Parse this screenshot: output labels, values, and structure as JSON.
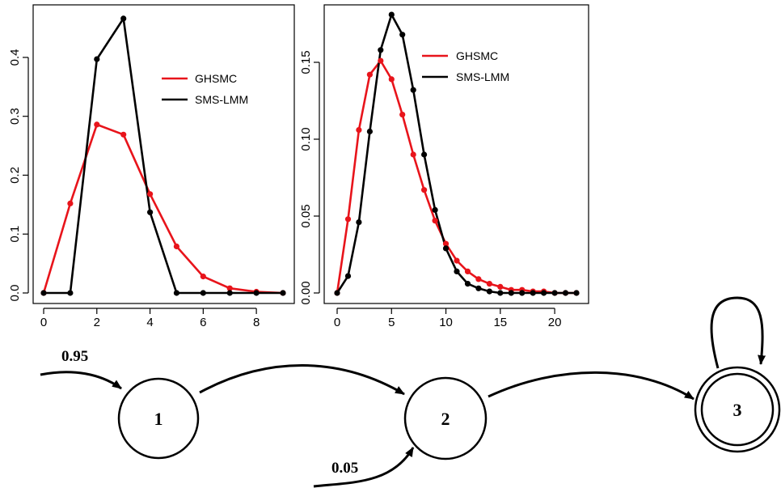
{
  "colors": {
    "ghsmc": "#e8141b",
    "sms_lmm": "#000000"
  },
  "chart_data": [
    {
      "type": "line",
      "xlim": [
        0,
        9
      ],
      "ylim": [
        0,
        0.47
      ],
      "x_ticks": [
        0,
        2,
        4,
        6,
        8
      ],
      "y_ticks": [
        0.0,
        0.1,
        0.2,
        0.3,
        0.4
      ],
      "x_tick_labels": [
        "0",
        "2",
        "4",
        "6",
        "8"
      ],
      "y_tick_labels": [
        "0.0",
        "0.1",
        "0.2",
        "0.3",
        "0.4"
      ],
      "legend_position": "top-right",
      "grid": false,
      "series": [
        {
          "name": "GHSMC",
          "color": "#e8141b",
          "x": [
            0,
            1,
            2,
            3,
            4,
            5,
            6,
            7,
            8,
            9
          ],
          "y": [
            0.0,
            0.152,
            0.286,
            0.269,
            0.168,
            0.079,
            0.028,
            0.008,
            0.002,
            0.0
          ]
        },
        {
          "name": "SMS-LMM",
          "color": "#000000",
          "x": [
            0,
            1,
            2,
            3,
            4,
            5,
            6,
            7,
            8,
            9
          ],
          "y": [
            0.0,
            0.0,
            0.397,
            0.466,
            0.137,
            0.0,
            0.0,
            0.0,
            0.0,
            0.0
          ]
        }
      ]
    },
    {
      "type": "line",
      "xlim": [
        0,
        22
      ],
      "ylim": [
        0,
        0.18
      ],
      "x_ticks": [
        0,
        5,
        10,
        15,
        20
      ],
      "y_ticks": [
        0.0,
        0.05,
        0.1,
        0.15
      ],
      "x_tick_labels": [
        "0",
        "5",
        "10",
        "15",
        "20"
      ],
      "y_tick_labels": [
        "0.00",
        "0.05",
        "0.10",
        "0.15"
      ],
      "legend_position": "top-right",
      "grid": false,
      "series": [
        {
          "name": "GHSMC",
          "color": "#e8141b",
          "x": [
            0,
            1,
            2,
            3,
            4,
            5,
            6,
            7,
            8,
            9,
            10,
            11,
            12,
            13,
            14,
            15,
            16,
            17,
            18,
            19,
            20,
            21,
            22
          ],
          "y": [
            0.0,
            0.048,
            0.106,
            0.142,
            0.151,
            0.139,
            0.116,
            0.09,
            0.067,
            0.047,
            0.032,
            0.021,
            0.014,
            0.009,
            0.006,
            0.004,
            0.002,
            0.002,
            0.001,
            0.001,
            0.0,
            0.0,
            0.0
          ]
        },
        {
          "name": "SMS-LMM",
          "color": "#000000",
          "x": [
            0,
            1,
            2,
            3,
            4,
            5,
            6,
            7,
            8,
            9,
            10,
            11,
            12,
            13,
            14,
            15,
            16,
            17,
            18,
            19,
            20,
            21,
            22
          ],
          "y": [
            0.0,
            0.011,
            0.046,
            0.105,
            0.158,
            0.181,
            0.168,
            0.132,
            0.09,
            0.054,
            0.029,
            0.014,
            0.006,
            0.003,
            0.001,
            0.0,
            0.0,
            0.0,
            0.0,
            0.0,
            0.0,
            0.0,
            0.0
          ]
        }
      ]
    }
  ],
  "diagram": {
    "states": [
      {
        "id": "1",
        "label": "1",
        "accepting": false
      },
      {
        "id": "2",
        "label": "2",
        "accepting": false
      },
      {
        "id": "3",
        "label": "3",
        "accepting": true
      }
    ],
    "initial_probs": [
      {
        "target": "1",
        "label": "0.95"
      },
      {
        "target": "2",
        "label": "0.05"
      }
    ],
    "transitions": [
      {
        "from": "1",
        "to": "2"
      },
      {
        "from": "2",
        "to": "3"
      },
      {
        "from": "3",
        "to": "3"
      }
    ]
  }
}
